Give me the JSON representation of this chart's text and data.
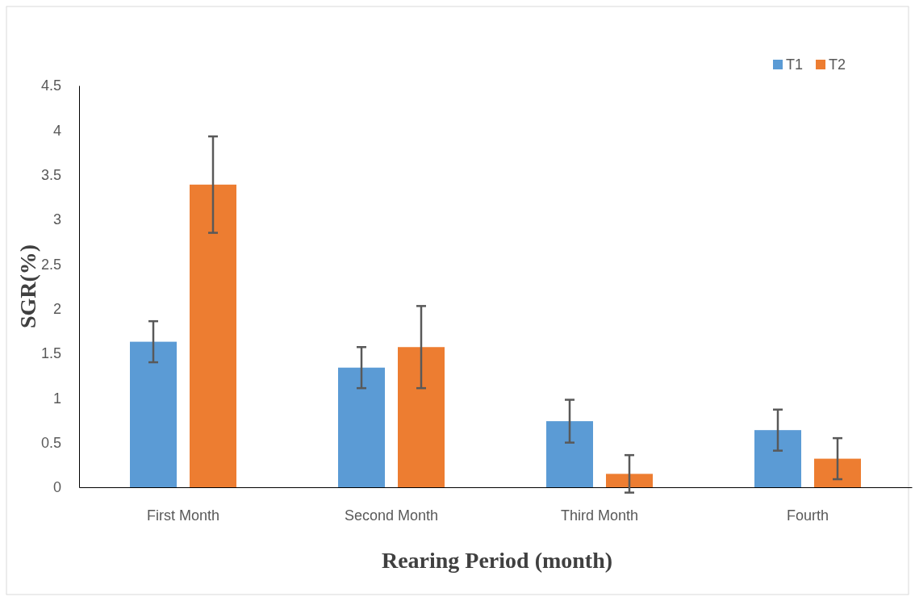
{
  "chart_data": {
    "type": "bar",
    "xlabel": "Rearing Period (month)",
    "ylabel": "SGR(%)",
    "categories": [
      "First Month",
      "Second Month",
      "Third Month",
      "Fourth"
    ],
    "series": [
      {
        "name": "T1",
        "color": "#5b9bd5",
        "values": [
          1.63,
          1.34,
          0.74,
          0.64
        ],
        "errors": [
          0.23,
          0.23,
          0.24,
          0.23
        ]
      },
      {
        "name": "T2",
        "color": "#ed7d31",
        "values": [
          3.39,
          1.57,
          0.15,
          0.32
        ],
        "errors": [
          0.54,
          0.46,
          0.21,
          0.23
        ]
      }
    ],
    "ylim": [
      0,
      4.5
    ],
    "yticks": [
      0,
      0.5,
      1,
      1.5,
      2,
      2.5,
      3,
      3.5,
      4,
      4.5
    ],
    "grid": false,
    "legend": "top right"
  }
}
